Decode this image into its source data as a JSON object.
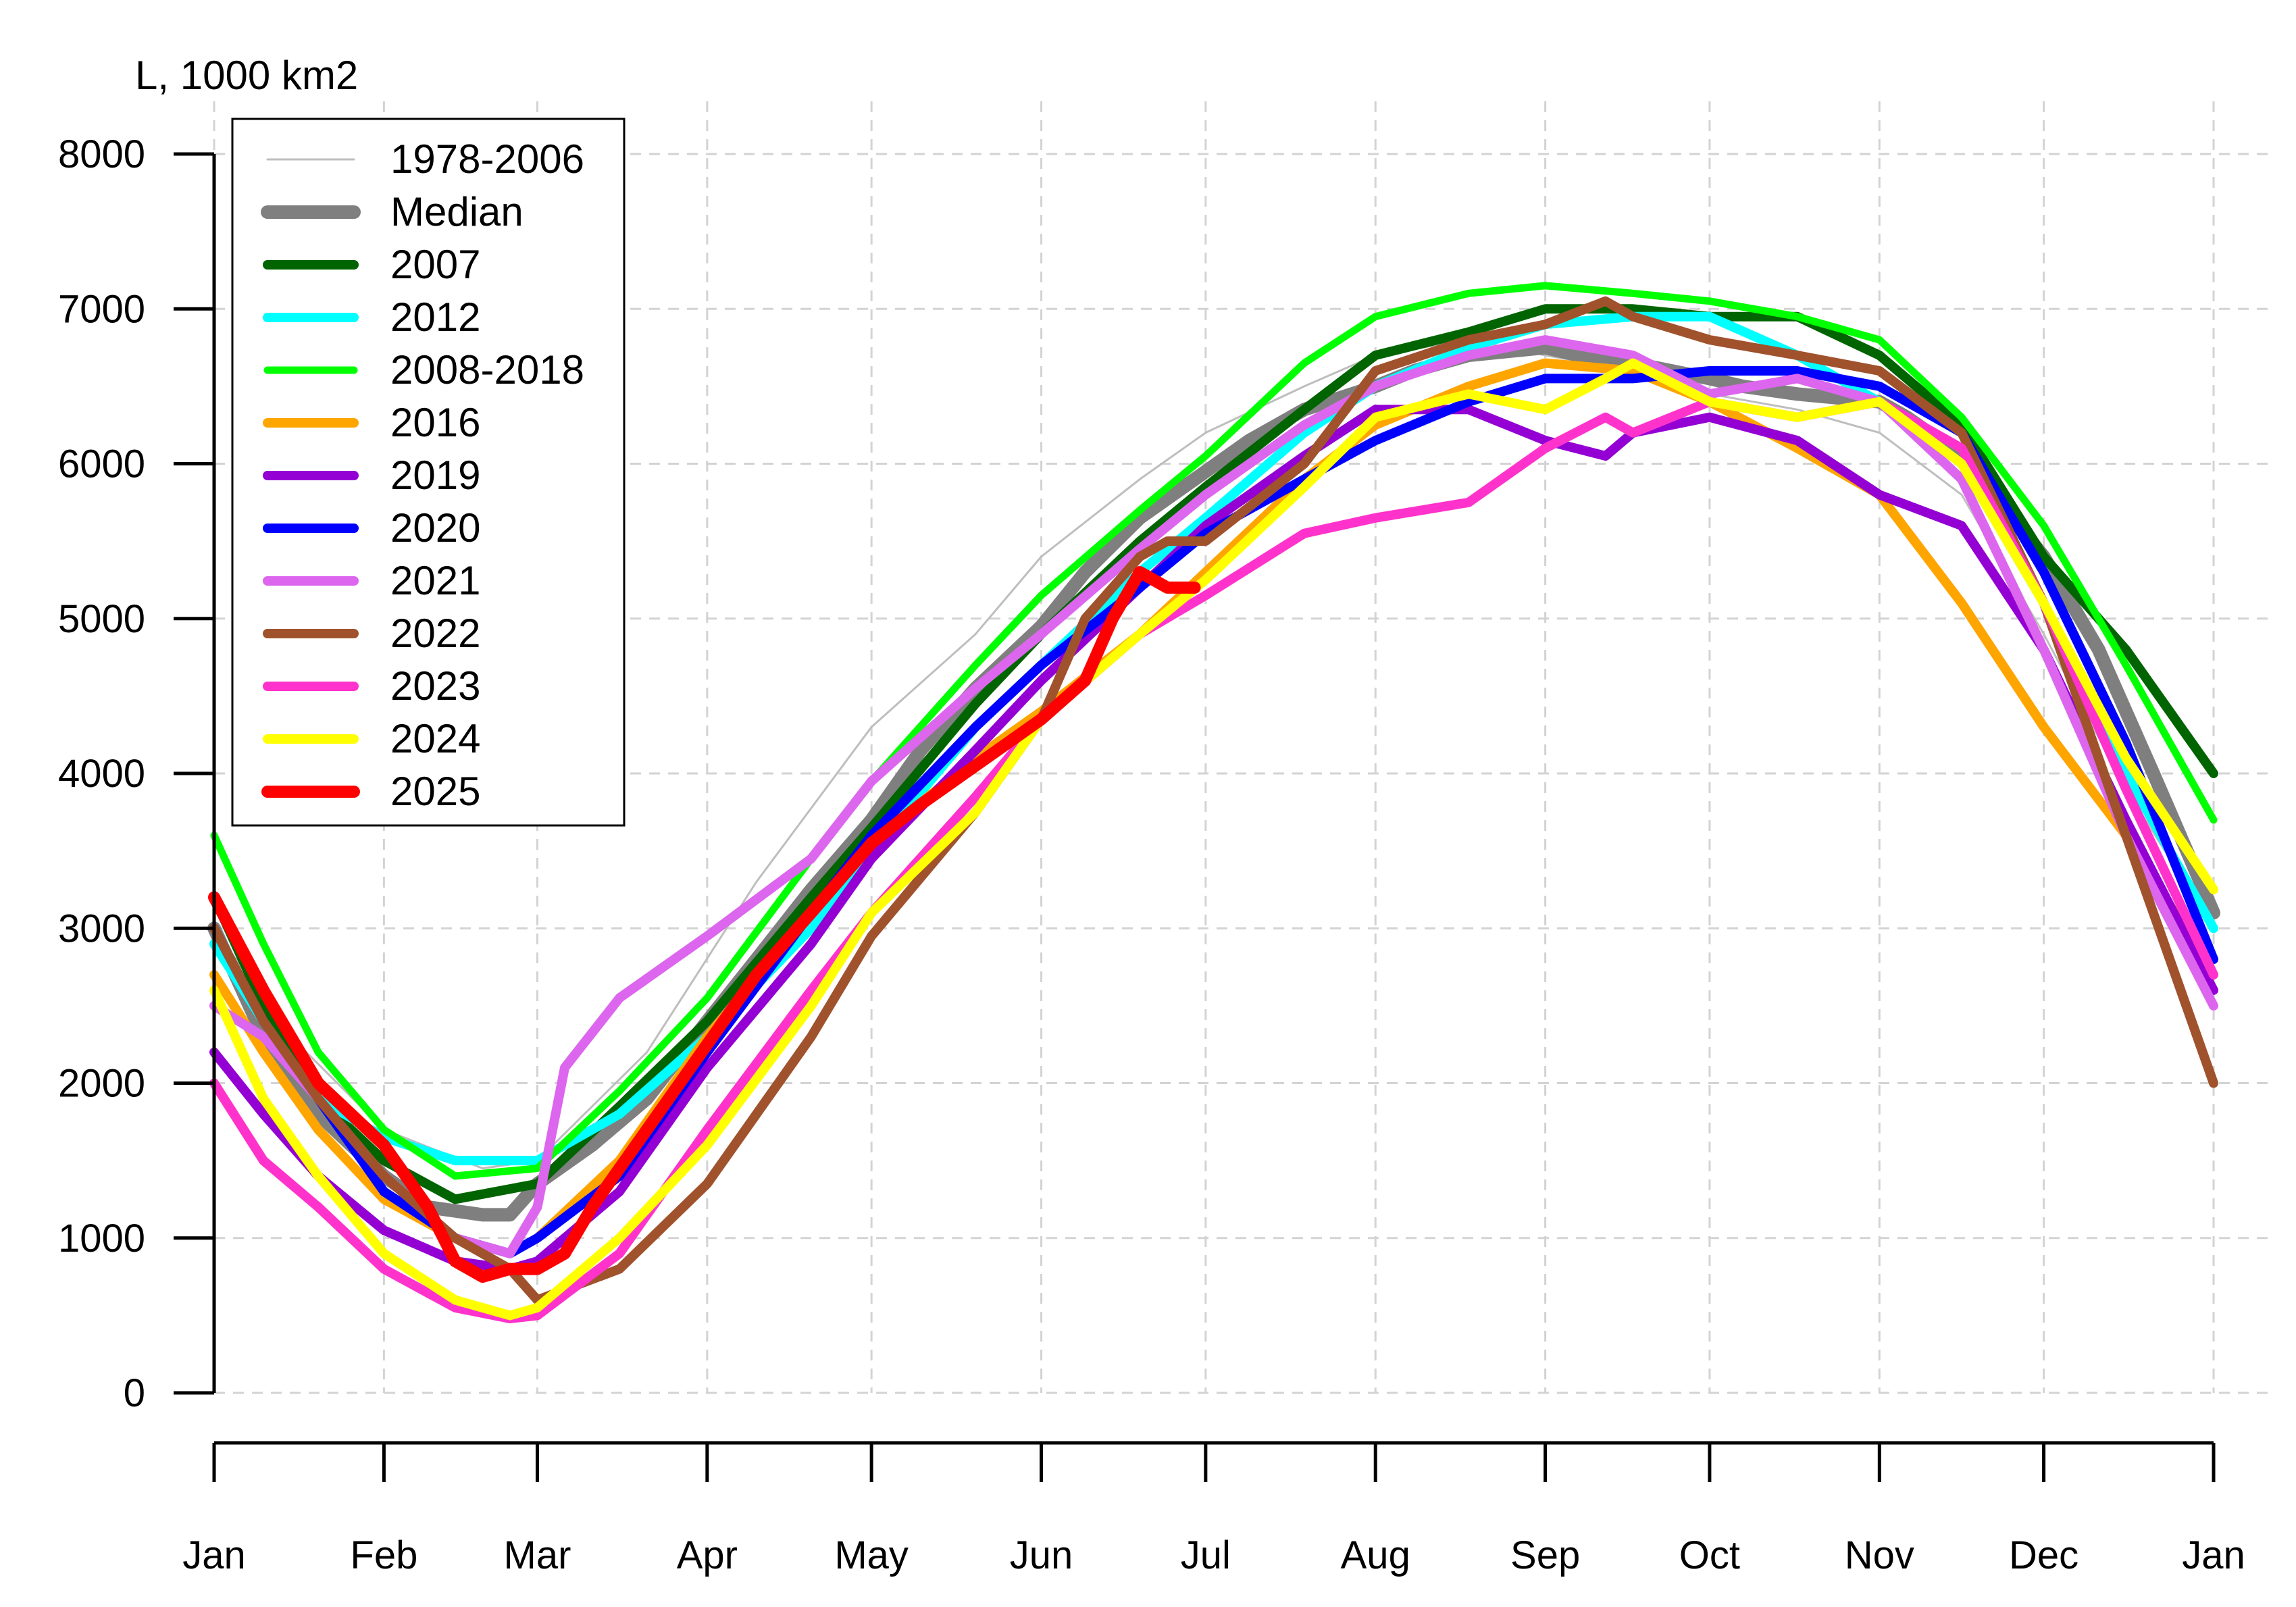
{
  "chart_data": {
    "type": "line",
    "ylabel": "L, 1000 km2",
    "ylim": [
      0,
      8000
    ],
    "xlim": [
      1,
      366
    ],
    "y_ticks": [
      0,
      1000,
      2000,
      3000,
      4000,
      5000,
      6000,
      7000,
      8000
    ],
    "month_labels": [
      "Jan",
      "Feb",
      "Mar",
      "Apr",
      "May",
      "Jun",
      "Jul",
      "Aug",
      "Sep",
      "Oct",
      "Nov",
      "Dec",
      "Jan"
    ],
    "month_days": [
      1,
      32,
      60,
      91,
      121,
      152,
      182,
      213,
      244,
      274,
      305,
      335,
      366
    ],
    "grid": true,
    "legend_position": "top-left",
    "series": [
      {
        "name": "1978-2006",
        "color": "#bebebe",
        "width": 3,
        "x": [
          1,
          15,
          32,
          50,
          60,
          80,
          100,
          121,
          140,
          152,
          170,
          182,
          200,
          213,
          230,
          244,
          260,
          274,
          290,
          305,
          320,
          335,
          350,
          366
        ],
        "y": [
          3000,
          2300,
          1700,
          1450,
          1500,
          2200,
          3300,
          4300,
          4900,
          5400,
          5900,
          6200,
          6500,
          6700,
          6800,
          6700,
          6600,
          6450,
          6350,
          6200,
          5800,
          4900,
          3900,
          3000
        ]
      },
      {
        "name": "Median",
        "color": "#7f7f7f",
        "width": 20,
        "x": [
          1,
          10,
          20,
          32,
          40,
          50,
          55,
          60,
          70,
          80,
          91,
          100,
          110,
          121,
          130,
          140,
          152,
          160,
          170,
          182,
          190,
          200,
          213,
          220,
          230,
          244,
          250,
          260,
          274,
          280,
          290,
          305,
          310,
          320,
          335,
          345,
          355,
          366
        ],
        "y": [
          3000,
          2300,
          1800,
          1400,
          1200,
          1150,
          1150,
          1350,
          1600,
          1900,
          2400,
          2800,
          3250,
          3700,
          4150,
          4550,
          4950,
          5300,
          5650,
          5950,
          6150,
          6350,
          6500,
          6600,
          6700,
          6750,
          6700,
          6650,
          6550,
          6500,
          6450,
          6400,
          6300,
          6050,
          5400,
          4800,
          4000,
          3100
        ]
      },
      {
        "name": "2007",
        "color": "#006400",
        "width": 14,
        "x": [
          1,
          10,
          20,
          32,
          45,
          60,
          75,
          91,
          110,
          121,
          140,
          152,
          170,
          182,
          200,
          213,
          230,
          244,
          260,
          274,
          290,
          305,
          320,
          335,
          350,
          366
        ],
        "y": [
          3200,
          2500,
          1900,
          1500,
          1250,
          1350,
          1850,
          2400,
          3200,
          3650,
          4450,
          4900,
          5500,
          5850,
          6350,
          6700,
          6850,
          7000,
          7000,
          6950,
          6950,
          6700,
          6250,
          5400,
          4800,
          4000
        ]
      },
      {
        "name": "2012",
        "color": "#00ffff",
        "width": 14,
        "x": [
          1,
          10,
          20,
          32,
          45,
          60,
          75,
          91,
          110,
          121,
          140,
          152,
          170,
          182,
          200,
          213,
          230,
          244,
          260,
          274,
          290,
          305,
          320,
          335,
          350,
          366
        ],
        "y": [
          2900,
          2400,
          1900,
          1650,
          1500,
          1500,
          1800,
          2300,
          3000,
          3500,
          4300,
          4700,
          5300,
          5650,
          6200,
          6500,
          6750,
          6900,
          6950,
          6950,
          6700,
          6400,
          6000,
          5100,
          4000,
          3000
        ]
      },
      {
        "name": "2008-2018",
        "color": "#00ff00",
        "width": 11,
        "x": [
          1,
          10,
          20,
          32,
          45,
          60,
          75,
          91,
          110,
          121,
          140,
          152,
          170,
          182,
          200,
          213,
          230,
          244,
          260,
          274,
          290,
          305,
          320,
          335,
          350,
          366
        ],
        "y": [
          3600,
          2900,
          2200,
          1700,
          1400,
          1450,
          1950,
          2550,
          3450,
          3950,
          4700,
          5150,
          5700,
          6050,
          6650,
          6950,
          7100,
          7150,
          7100,
          7050,
          6950,
          6800,
          6300,
          5600,
          4700,
          3700
        ]
      },
      {
        "name": "2016",
        "color": "#ffa500",
        "width": 14,
        "x": [
          1,
          10,
          20,
          32,
          45,
          55,
          60,
          75,
          91,
          110,
          121,
          140,
          152,
          170,
          182,
          200,
          213,
          230,
          244,
          260,
          274,
          290,
          305,
          320,
          335,
          350,
          366
        ],
        "y": [
          2700,
          2200,
          1700,
          1250,
          1000,
          900,
          1000,
          1500,
          2300,
          3100,
          3550,
          4100,
          4400,
          4900,
          5300,
          5900,
          6250,
          6500,
          6650,
          6600,
          6400,
          6100,
          5800,
          5100,
          4300,
          3600,
          2700
        ]
      },
      {
        "name": "2019",
        "color": "#9400d3",
        "width": 14,
        "x": [
          1,
          10,
          20,
          32,
          45,
          55,
          60,
          75,
          91,
          110,
          121,
          140,
          152,
          170,
          182,
          200,
          213,
          230,
          244,
          255,
          260,
          274,
          290,
          305,
          320,
          335,
          350,
          366
        ],
        "y": [
          2200,
          1800,
          1400,
          1050,
          850,
          800,
          850,
          1300,
          2100,
          2900,
          3450,
          4150,
          4600,
          5200,
          5600,
          6050,
          6350,
          6350,
          6150,
          6050,
          6200,
          6300,
          6150,
          5800,
          5600,
          4800,
          3700,
          2600
        ]
      },
      {
        "name": "2020",
        "color": "#0000ff",
        "width": 14,
        "x": [
          1,
          10,
          20,
          32,
          45,
          55,
          60,
          75,
          91,
          110,
          121,
          140,
          152,
          170,
          182,
          200,
          213,
          230,
          244,
          260,
          274,
          290,
          305,
          320,
          335,
          350,
          366
        ],
        "y": [
          3000,
          2400,
          1900,
          1300,
          1000,
          900,
          1000,
          1400,
          2200,
          3100,
          3600,
          4300,
          4700,
          5200,
          5550,
          5900,
          6150,
          6400,
          6550,
          6550,
          6600,
          6600,
          6500,
          6200,
          5300,
          4200,
          2800
        ]
      },
      {
        "name": "2021",
        "color": "#dd66ee",
        "width": 14,
        "x": [
          1,
          10,
          20,
          32,
          45,
          55,
          60,
          65,
          75,
          91,
          110,
          121,
          140,
          152,
          170,
          182,
          200,
          213,
          230,
          244,
          260,
          274,
          290,
          305,
          320,
          335,
          350,
          366
        ],
        "y": [
          2500,
          2300,
          1900,
          1400,
          1000,
          900,
          1200,
          2100,
          2550,
          2950,
          3450,
          3950,
          4550,
          4900,
          5450,
          5800,
          6250,
          6500,
          6700,
          6800,
          6700,
          6450,
          6550,
          6400,
          5900,
          4800,
          3600,
          2500
        ]
      },
      {
        "name": "2022",
        "color": "#a0522d",
        "width": 14,
        "x": [
          1,
          10,
          20,
          32,
          45,
          55,
          60,
          75,
          91,
          110,
          121,
          140,
          152,
          160,
          170,
          175,
          182,
          200,
          213,
          230,
          244,
          255,
          260,
          274,
          290,
          305,
          320,
          335,
          350,
          366
        ],
        "y": [
          3000,
          2400,
          1900,
          1400,
          1000,
          800,
          600,
          800,
          1350,
          2300,
          2950,
          3750,
          4350,
          5000,
          5400,
          5500,
          5500,
          6000,
          6600,
          6800,
          6900,
          7050,
          6950,
          6800,
          6700,
          6600,
          6200,
          5100,
          3600,
          2000
        ]
      },
      {
        "name": "2023",
        "color": "#ff33cc",
        "width": 14,
        "x": [
          1,
          10,
          20,
          32,
          45,
          55,
          60,
          75,
          91,
          110,
          121,
          140,
          152,
          170,
          182,
          200,
          213,
          230,
          244,
          255,
          260,
          274,
          290,
          305,
          320,
          335,
          350,
          366
        ],
        "y": [
          2000,
          1500,
          1200,
          800,
          550,
          480,
          500,
          900,
          1700,
          2600,
          3100,
          3850,
          4350,
          4900,
          5150,
          5550,
          5650,
          5750,
          6100,
          6300,
          6200,
          6400,
          6300,
          6400,
          6100,
          5100,
          3900,
          2700
        ]
      },
      {
        "name": "2024",
        "color": "#ffff00",
        "width": 14,
        "x": [
          1,
          10,
          20,
          32,
          45,
          55,
          60,
          75,
          91,
          110,
          121,
          140,
          152,
          170,
          182,
          200,
          213,
          230,
          244,
          255,
          260,
          274,
          290,
          305,
          320,
          335,
          350,
          366
        ],
        "y": [
          2600,
          1900,
          1400,
          900,
          600,
          500,
          550,
          1000,
          1600,
          2500,
          3100,
          3750,
          4350,
          4900,
          5250,
          5850,
          6300,
          6450,
          6350,
          6550,
          6650,
          6400,
          6300,
          6400,
          6000,
          5100,
          4100,
          3250
        ]
      },
      {
        "name": "2025",
        "color": "#ff0000",
        "width": 18,
        "x": [
          1,
          10,
          20,
          32,
          40,
          45,
          50,
          55,
          60,
          65,
          70,
          80,
          91,
          100,
          110,
          121,
          130,
          140,
          152,
          160,
          165,
          170,
          175,
          180
        ],
        "y": [
          3200,
          2600,
          2000,
          1600,
          1200,
          850,
          750,
          800,
          800,
          900,
          1200,
          1700,
          2250,
          2700,
          3100,
          3550,
          3800,
          4050,
          4350,
          4600,
          5000,
          5300,
          5200,
          5200
        ]
      }
    ]
  }
}
